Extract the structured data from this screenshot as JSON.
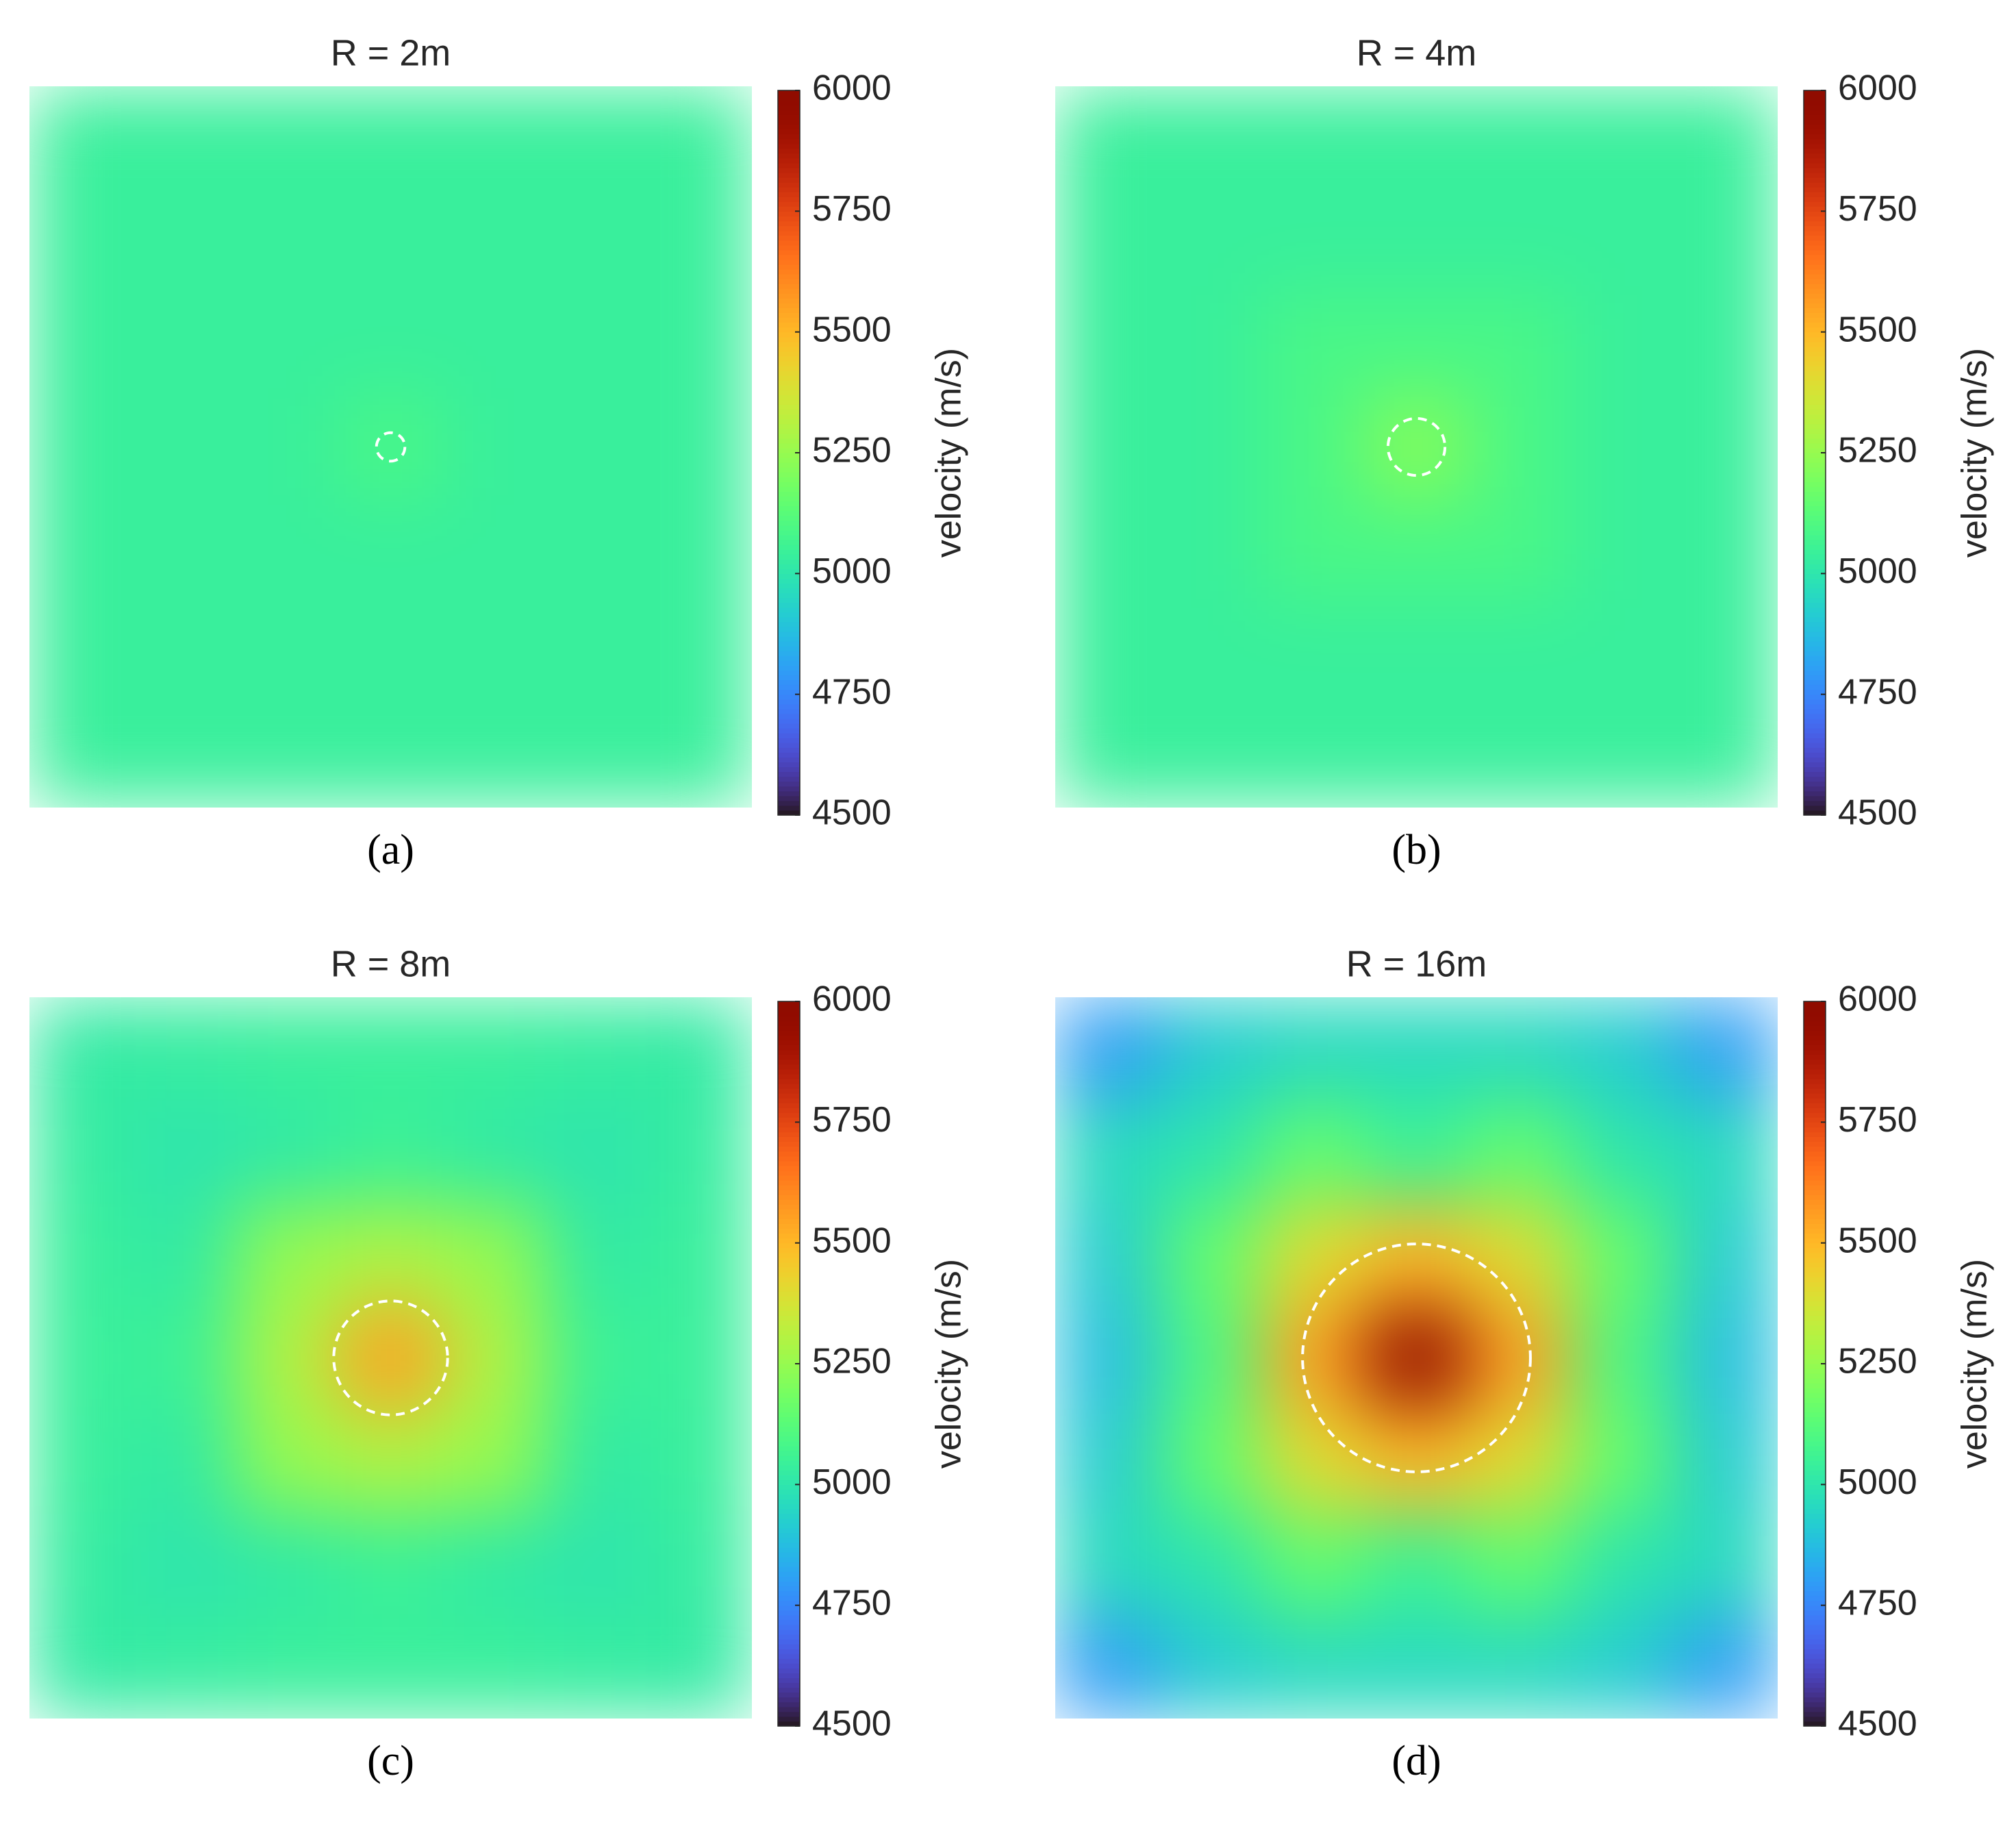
{
  "chart_data": [
    {
      "type": "heatmap",
      "title": "R = 2m",
      "caption": "(a)",
      "radius": 2,
      "values": [
        [
          5040,
          5040,
          5040,
          5040,
          5040,
          5040,
          5040
        ],
        [
          5040,
          5040,
          5040,
          5040,
          5040,
          5040,
          5040
        ],
        [
          5040,
          5040,
          5040,
          5040,
          5040,
          5040,
          5040
        ],
        [
          5040,
          5040,
          5040,
          5090,
          5040,
          5040,
          5040
        ],
        [
          5040,
          5040,
          5040,
          5040,
          5040,
          5040,
          5040
        ],
        [
          5040,
          5040,
          5040,
          5040,
          5040,
          5040,
          5040
        ],
        [
          5040,
          5040,
          5040,
          5040,
          5040,
          5040,
          5040
        ]
      ],
      "clim": [
        4500,
        6000
      ],
      "cticks": [
        4500,
        4750,
        5000,
        5250,
        5500,
        5750,
        6000
      ],
      "colorbar_label": "velocity (m/s)"
    },
    {
      "type": "heatmap",
      "title": "R = 4m",
      "caption": "(b)",
      "radius": 4,
      "values": [
        [
          5040,
          5040,
          5040,
          5040,
          5040,
          5040,
          5040
        ],
        [
          5040,
          5040,
          5040,
          5040,
          5040,
          5040,
          5040
        ],
        [
          5040,
          5040,
          5090,
          5090,
          5090,
          5040,
          5040
        ],
        [
          5040,
          5040,
          5090,
          5220,
          5090,
          5040,
          5040
        ],
        [
          5040,
          5040,
          5090,
          5090,
          5090,
          5040,
          5040
        ],
        [
          5040,
          5040,
          5040,
          5040,
          5040,
          5040,
          5040
        ],
        [
          5040,
          5040,
          5040,
          5040,
          5040,
          5040,
          5040
        ]
      ],
      "clim": [
        4500,
        6000
      ],
      "cticks": [
        4500,
        4750,
        5000,
        5250,
        5500,
        5750,
        6000
      ],
      "colorbar_label": "velocity (m/s)"
    },
    {
      "type": "heatmap",
      "title": "R = 8m",
      "caption": "(c)",
      "radius": 8,
      "values": [
        [
          5020,
          5030,
          5040,
          5040,
          5040,
          5030,
          5020
        ],
        [
          5030,
          5000,
          5020,
          5050,
          5020,
          5000,
          5030
        ],
        [
          5040,
          5020,
          5250,
          5300,
          5250,
          5020,
          5040
        ],
        [
          5040,
          5050,
          5300,
          5550,
          5300,
          5050,
          5040
        ],
        [
          5040,
          5020,
          5250,
          5300,
          5250,
          5020,
          5040
        ],
        [
          5030,
          5000,
          5020,
          5050,
          5020,
          5000,
          5030
        ],
        [
          5020,
          5030,
          5040,
          5040,
          5040,
          5030,
          5020
        ]
      ],
      "clim": [
        4500,
        6000
      ],
      "cticks": [
        4500,
        4750,
        5000,
        5250,
        5500,
        5750,
        6000
      ],
      "colorbar_label": "velocity (m/s)"
    },
    {
      "type": "heatmap",
      "title": "R = 16m",
      "caption": "(d)",
      "radius": 16,
      "values": [
        [
          4800,
          4920,
          4960,
          4960,
          4960,
          4920,
          4800
        ],
        [
          4960,
          5000,
          5150,
          5050,
          5150,
          5000,
          4960
        ],
        [
          4920,
          5150,
          5400,
          5500,
          5400,
          5150,
          4920
        ],
        [
          4880,
          5100,
          5550,
          5950,
          5550,
          5100,
          4880
        ],
        [
          4920,
          5150,
          5400,
          5500,
          5400,
          5150,
          4920
        ],
        [
          4960,
          5000,
          5150,
          5050,
          5150,
          5000,
          4960
        ],
        [
          4800,
          4920,
          4960,
          4960,
          4960,
          4920,
          4800
        ]
      ],
      "clim": [
        4500,
        6000
      ],
      "cticks": [
        4500,
        4750,
        5000,
        5250,
        5500,
        5750,
        6000
      ],
      "colorbar_label": "velocity (m/s)"
    }
  ]
}
